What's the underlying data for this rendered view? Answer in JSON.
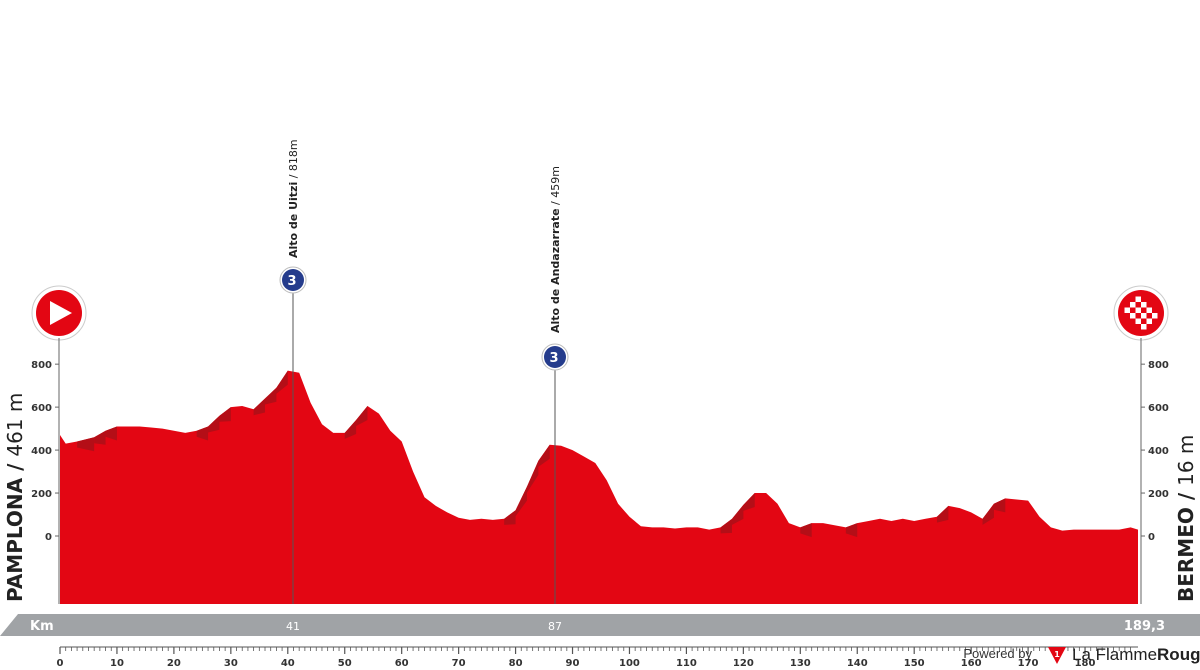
{
  "chart_data": {
    "type": "area",
    "title": "",
    "xlabel": "Km",
    "ylabel": "",
    "xlim": [
      0,
      189.3
    ],
    "ylim": [
      -130,
      900
    ],
    "x_ticks": [
      0,
      10,
      20,
      30,
      40,
      50,
      60,
      70,
      80,
      90,
      100,
      110,
      120,
      130,
      140,
      150,
      160,
      170,
      180
    ],
    "y_ticks": [
      0,
      200,
      400,
      600,
      800
    ],
    "grid": false,
    "legend": "none",
    "series": [
      {
        "x": [
          0,
          1,
          3,
          6,
          8,
          10,
          12,
          14,
          16,
          18,
          20,
          22,
          24,
          26,
          28,
          30,
          32,
          34,
          36,
          38,
          40,
          42,
          44,
          46,
          48,
          50,
          52,
          54,
          56,
          58,
          60,
          62,
          64,
          66,
          68,
          70,
          72,
          74,
          76,
          78,
          80,
          82,
          84,
          86,
          88,
          90,
          92,
          94,
          96,
          98,
          100,
          102,
          104,
          106,
          108,
          110,
          112,
          114,
          116,
          118,
          120,
          122,
          124,
          126,
          128,
          130,
          132,
          134,
          136,
          138,
          140,
          142,
          144,
          146,
          148,
          150,
          152,
          154,
          156,
          158,
          160,
          162,
          164,
          166,
          168,
          170,
          172,
          174,
          176,
          178,
          180,
          182,
          184,
          186,
          188,
          189.3
        ],
        "y": [
          470,
          430,
          440,
          460,
          490,
          510,
          510,
          510,
          505,
          500,
          490,
          480,
          490,
          510,
          560,
          600,
          605,
          590,
          640,
          690,
          770,
          760,
          620,
          520,
          480,
          480,
          540,
          605,
          570,
          490,
          440,
          300,
          180,
          140,
          110,
          85,
          75,
          80,
          75,
          80,
          120,
          230,
          350,
          425,
          420,
          400,
          370,
          340,
          260,
          150,
          90,
          45,
          40,
          40,
          35,
          40,
          40,
          30,
          40,
          80,
          145,
          200,
          200,
          150,
          60,
          40,
          60,
          60,
          50,
          40,
          60,
          70,
          80,
          70,
          80,
          70,
          80,
          90,
          140,
          130,
          110,
          80,
          150,
          175,
          170,
          165,
          90,
          40,
          25,
          30,
          30,
          30,
          30,
          30,
          40,
          30
        ]
      }
    ],
    "start": {
      "town": "PAMPLONA",
      "altitude": "461 m"
    },
    "finish": {
      "town": "BERMEO",
      "altitude": "16 m"
    },
    "climbs": [
      {
        "name": "Alto de Uitzi",
        "altitude": "818m",
        "category": "3",
        "km": 41,
        "km_label": "41"
      },
      {
        "name": "Alto de Andazarrate",
        "altitude": "459m",
        "category": "3",
        "km": 87,
        "km_label": "87"
      }
    ],
    "distance_label": "189,3",
    "colors": {
      "profile": "#e30613",
      "profile_dark": "#b40e17",
      "band": "#a0a3a6",
      "climb_badge": "#253c8c",
      "start_marker": "#e30613"
    }
  },
  "footer": {
    "powered_by": "Powered by",
    "brand_prefix": "La Flamme",
    "brand_suffix": "Rouge"
  }
}
